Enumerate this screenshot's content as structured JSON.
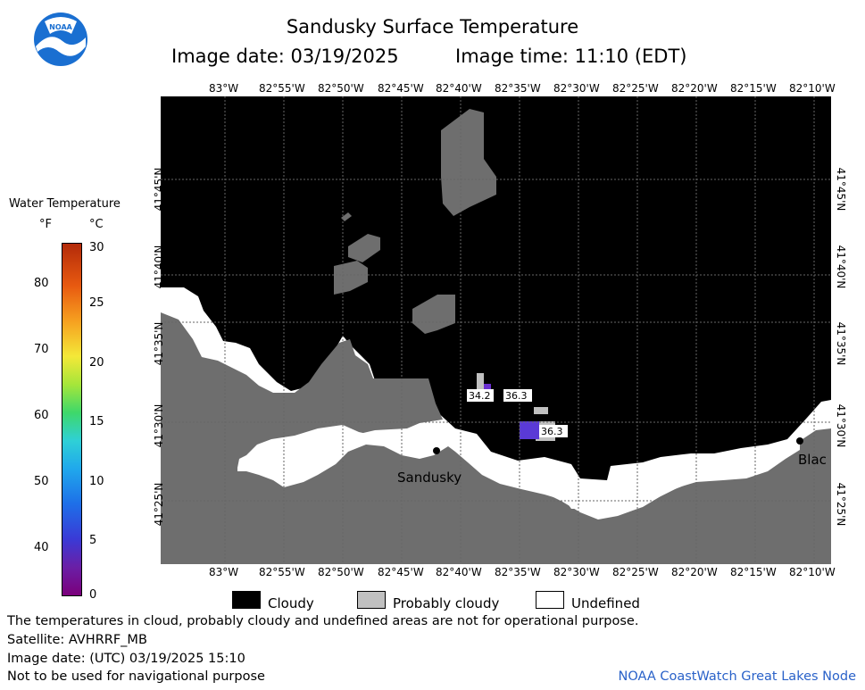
{
  "header": {
    "title": "Sandusky Surface Temperature",
    "image_date": "Image date: 03/19/2025",
    "image_time": "Image time: 11:10 (EDT)"
  },
  "logo": {
    "text": "NOAA",
    "color": "#1a6fd1"
  },
  "colorbar": {
    "title": "Water Temperature",
    "unit_f": "°F",
    "unit_c": "°C",
    "f_ticks": [
      "80",
      "70",
      "60",
      "50",
      "40"
    ],
    "c_ticks": [
      "30",
      "25",
      "20",
      "15",
      "10",
      "5",
      "0"
    ]
  },
  "map": {
    "lon_labels": [
      "83°W",
      "82°55'W",
      "82°50'W",
      "82°45'W",
      "82°40'W",
      "82°35'W",
      "82°30'W",
      "82°25'W",
      "82°20'W",
      "82°15'W",
      "82°10'W"
    ],
    "lat_labels": [
      "41°45'N",
      "41°40'N",
      "41°35'N",
      "41°30'N",
      "41°25'N"
    ],
    "place_labels": {
      "sandusky": "Sandusky",
      "blac": "Blac"
    },
    "temp_labels": [
      "34.2",
      "36.3",
      "36.3"
    ]
  },
  "legend": {
    "cloudy": "Cloudy",
    "probably_cloudy": "Probably cloudy",
    "undefined": "Undefined"
  },
  "footer": {
    "line1": "The temperatures in cloud, probably cloudy and undefined areas are not for operational purpose.",
    "line2": "Satellite: AVHRRF_MB",
    "line3": "Image date: (UTC) 03/19/2025  15:10",
    "line4": "Not to be used for navigational purpose",
    "credit": "NOAA CoastWatch Great Lakes Node"
  },
  "colors": {
    "cloudy": "#000000",
    "probably_cloudy": "#c0c0c0",
    "undefined": "#ffffff",
    "land": "#6e6e6e",
    "credit": "#2a62c9"
  }
}
